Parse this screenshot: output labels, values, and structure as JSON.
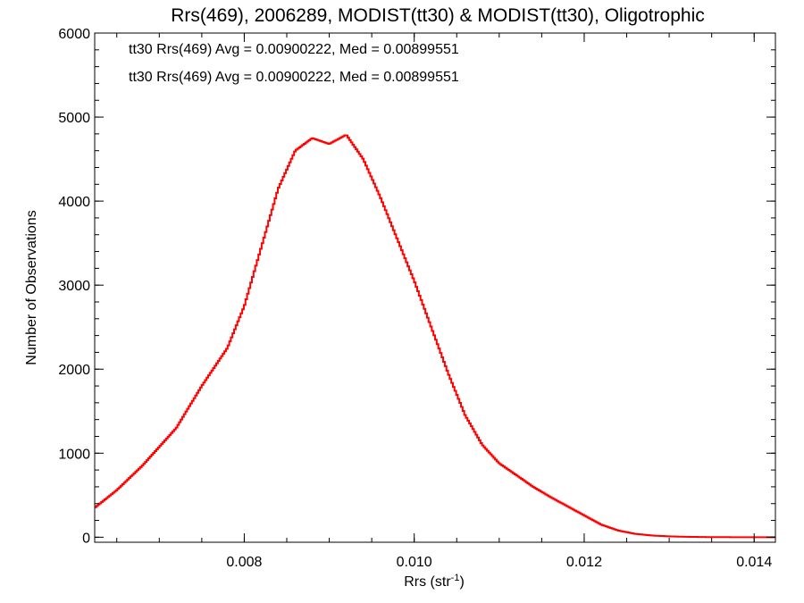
{
  "chart_data": {
    "type": "line",
    "title": "Rrs(469), 2006289, MODIST(tt30) & MODIST(tt30), Oligotrophic",
    "xlabel": "Rrs (str",
    "xlabel_sup": "-1",
    "xlabel_close": ")",
    "ylabel": "Number of Observations",
    "xlim": [
      0.00624,
      0.01425
    ],
    "ylim": [
      -60,
      6000
    ],
    "x_ticks": [
      0.008,
      0.01,
      0.012,
      0.014
    ],
    "x_tick_labels": [
      "0.008",
      "0.010",
      "0.012",
      "0.014"
    ],
    "x_minor_step": 0.0005,
    "y_ticks": [
      0,
      1000,
      2000,
      3000,
      4000,
      5000,
      6000
    ],
    "y_tick_labels": [
      "0",
      "1000",
      "2000",
      "3000",
      "4000",
      "5000",
      "6000"
    ],
    "y_minor_step": 200,
    "grid": false,
    "annotations": [
      {
        "text": "tt30 Rrs(469) Avg = 0.00900222, Med = 0.00899551",
        "color": "#000000"
      },
      {
        "text": "tt30 Rrs(469) Avg = 0.00900222, Med = 0.00899551",
        "color": "#ff0000"
      }
    ],
    "series": [
      {
        "color": "#ff0000",
        "step": true,
        "x": [
          0.00624,
          0.0065,
          0.0068,
          0.0072,
          0.0075,
          0.0078,
          0.008,
          0.0082,
          0.0084,
          0.0086,
          0.0088,
          0.009,
          0.0092,
          0.0094,
          0.0096,
          0.0098,
          0.01,
          0.0102,
          0.0104,
          0.0106,
          0.0108,
          0.011,
          0.0112,
          0.0114,
          0.0116,
          0.0118,
          0.012,
          0.0122,
          0.0124,
          0.0126,
          0.0128,
          0.013,
          0.0132,
          0.0134,
          0.0136,
          0.0138,
          0.014,
          0.01425
        ],
        "y": [
          350,
          560,
          850,
          1300,
          1800,
          2250,
          2750,
          3450,
          4150,
          4600,
          4750,
          4680,
          4790,
          4500,
          4050,
          3550,
          3050,
          2500,
          1950,
          1450,
          1100,
          880,
          740,
          600,
          480,
          370,
          260,
          150,
          80,
          40,
          20,
          10,
          5,
          2,
          1,
          0,
          0,
          0
        ]
      }
    ]
  }
}
